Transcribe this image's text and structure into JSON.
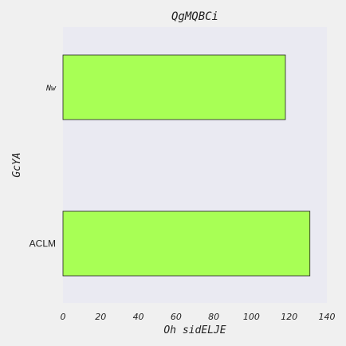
{
  "chart_data": {
    "type": "bar",
    "orientation": "horizontal",
    "title": "QgMQBCi",
    "xlabel": "Oh sidELJE",
    "ylabel": "GcYA",
    "categories": [
      "Nw",
      "ACLM"
    ],
    "values": [
      118,
      131
    ],
    "xlim": [
      0,
      140
    ],
    "xticks": [
      0,
      20,
      40,
      60,
      80,
      100,
      120,
      140
    ],
    "grid": false,
    "legend": "none",
    "colors": {
      "bar_fill": "#a8ff55",
      "bar_edge": "#222222",
      "plot_background": "#eaeaf2",
      "figure_background": "#f0f0f0"
    }
  }
}
